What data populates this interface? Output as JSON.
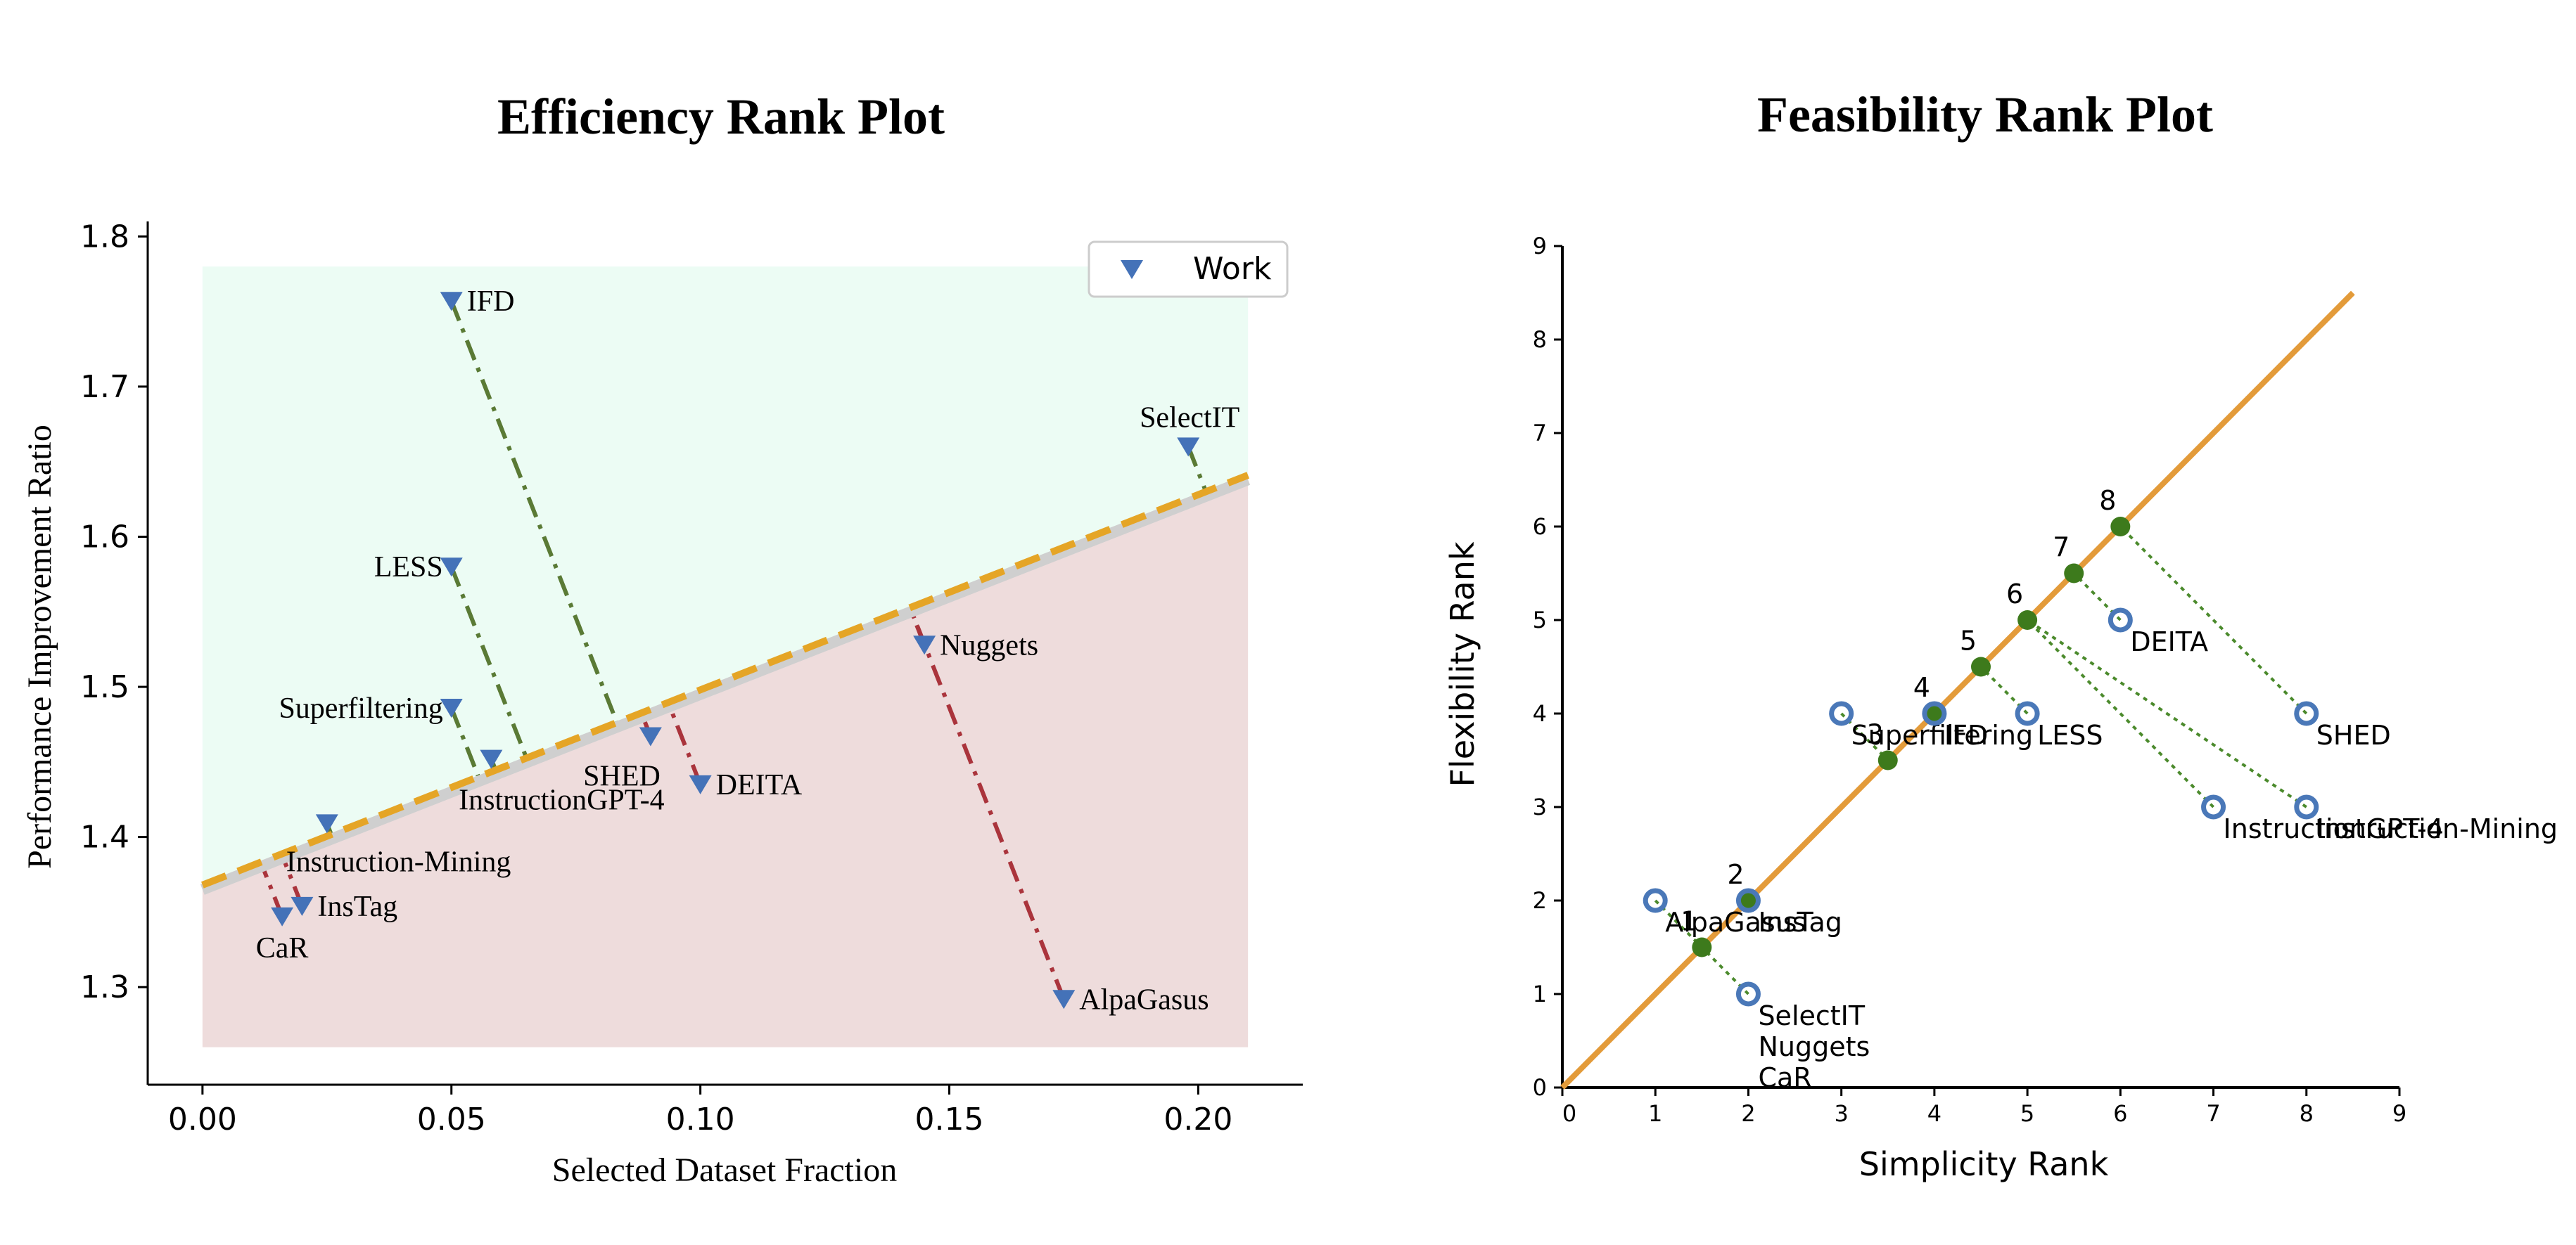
{
  "chart_data": [
    {
      "type": "scatter",
      "title": "Efficiency Rank Plot",
      "xlabel": "Selected Dataset Fraction",
      "ylabel": "Performance Improvement Ratio",
      "xlim": [
        -0.011,
        0.221
      ],
      "ylim": [
        1.235,
        1.81
      ],
      "x_ticks": [
        "0.00",
        "0.05",
        "0.10",
        "0.15",
        "0.20"
      ],
      "y_ticks": [
        "1.3",
        "1.4",
        "1.5",
        "1.6",
        "1.7",
        "1.8"
      ],
      "x_tick_values": [
        0.0,
        0.05,
        0.1,
        0.15,
        0.2
      ],
      "y_tick_values": [
        1.3,
        1.4,
        1.5,
        1.6,
        1.7,
        1.8
      ],
      "legend": {
        "placement": "top-right",
        "label": "Work"
      },
      "regions": {
        "above": {
          "color": "#ecfcf4",
          "x": [
            0.0,
            0.21
          ],
          "y": [
            1.26,
            1.78
          ]
        },
        "below": {
          "color": "#eedcdc"
        }
      },
      "trend_line": {
        "x": [
          0.0,
          0.21
        ],
        "y": [
          1.368,
          1.641
        ],
        "color": "#e5a526"
      },
      "grey_line": {
        "x": [
          0.0,
          0.21
        ],
        "y": [
          1.365,
          1.638
        ],
        "color": "#cfcfcf"
      },
      "above_color": "#5a7a35",
      "below_color": "#aa343c",
      "marker_color": "#4472b8",
      "points": [
        {
          "name": "IFD",
          "x": 0.05,
          "y": 1.757,
          "side": "above",
          "label_pos": "right"
        },
        {
          "name": "SelectIT",
          "x": 0.198,
          "y": 1.66,
          "side": "above",
          "label_pos": "top"
        },
        {
          "name": "LESS",
          "x": 0.05,
          "y": 1.58,
          "side": "above",
          "label_pos": "left"
        },
        {
          "name": "Superfiltering",
          "x": 0.05,
          "y": 1.486,
          "side": "above",
          "label_pos": "left"
        },
        {
          "name": "InstructionGPT-4",
          "x": 0.058,
          "y": 1.452,
          "side": "above",
          "label_pos": "below-center"
        },
        {
          "name": "SHED",
          "x": 0.09,
          "y": 1.467,
          "side": "below",
          "label_pos": "below-left"
        },
        {
          "name": "DEITA",
          "x": 0.1,
          "y": 1.435,
          "side": "below",
          "label_pos": "right"
        },
        {
          "name": "Nuggets",
          "x": 0.145,
          "y": 1.528,
          "side": "below",
          "label_pos": "right"
        },
        {
          "name": "AlpaGasus",
          "x": 0.173,
          "y": 1.292,
          "side": "below",
          "label_pos": "right"
        },
        {
          "name": "Instruction-Mining",
          "x": 0.025,
          "y": 1.409,
          "side": "above",
          "label_pos": "below-right"
        },
        {
          "name": "InsTag",
          "x": 0.02,
          "y": 1.354,
          "side": "below",
          "label_pos": "right"
        },
        {
          "name": "CaR",
          "x": 0.016,
          "y": 1.347,
          "side": "below",
          "label_pos": "below"
        }
      ]
    },
    {
      "type": "scatter",
      "title": "Feasibility Rank Plot",
      "xlabel": "Simplicity Rank",
      "ylabel": "Flexibility Rank",
      "xlim": [
        0,
        9
      ],
      "ylim": [
        0,
        9
      ],
      "x_ticks": [
        "0",
        "1",
        "2",
        "3",
        "4",
        "5",
        "6",
        "7",
        "8",
        "9"
      ],
      "y_ticks": [
        "0",
        "1",
        "2",
        "3",
        "4",
        "5",
        "6",
        "7",
        "8",
        "9"
      ],
      "x_tick_values": [
        0,
        1,
        2,
        3,
        4,
        5,
        6,
        7,
        8,
        9
      ],
      "y_tick_values": [
        0,
        1,
        2,
        3,
        4,
        5,
        6,
        7,
        8,
        9
      ],
      "diagonal": {
        "x": [
          0,
          8.5
        ],
        "y": [
          0,
          8.5
        ],
        "color": "#e39b3a"
      },
      "rank_points": [
        {
          "label": "1",
          "x": 1.5,
          "y": 1.5
        },
        {
          "label": "2",
          "x": 2.0,
          "y": 2.0
        },
        {
          "label": "3",
          "x": 3.5,
          "y": 3.5
        },
        {
          "label": "4",
          "x": 4.0,
          "y": 4.0
        },
        {
          "label": "5",
          "x": 4.5,
          "y": 4.5
        },
        {
          "label": "6",
          "x": 5.0,
          "y": 5.0
        },
        {
          "label": "7",
          "x": 5.5,
          "y": 5.5
        },
        {
          "label": "8",
          "x": 6.0,
          "y": 6.0
        }
      ],
      "work_points": [
        {
          "x": 1,
          "y": 2,
          "labels": [
            "AlpaGasus"
          ],
          "rank": "1"
        },
        {
          "x": 2,
          "y": 2,
          "labels": [
            "InsTag"
          ],
          "rank": "2"
        },
        {
          "x": 2,
          "y": 1,
          "labels": [
            "SelectIT",
            "Nuggets",
            "CaR"
          ],
          "rank": "1"
        },
        {
          "x": 3,
          "y": 4,
          "labels": [
            "Superfiltering"
          ],
          "rank": "3"
        },
        {
          "x": 4,
          "y": 4,
          "labels": [
            "IFD"
          ],
          "rank": "4"
        },
        {
          "x": 5,
          "y": 4,
          "labels": [
            "LESS"
          ],
          "rank": "5"
        },
        {
          "x": 6,
          "y": 5,
          "labels": [
            "DEITA"
          ],
          "rank": "7"
        },
        {
          "x": 7,
          "y": 3,
          "labels": [
            "InstructionGPT-4"
          ],
          "rank": "6"
        },
        {
          "x": 8,
          "y": 3,
          "labels": [
            "Instruction-Mining"
          ],
          "rank": "6"
        },
        {
          "x": 8,
          "y": 4,
          "labels": [
            "SHED"
          ],
          "rank": "8"
        }
      ],
      "rank_color": "#3d7a1c",
      "work_color": "#4a78b8",
      "connector_color": "#4b8a2c"
    }
  ]
}
